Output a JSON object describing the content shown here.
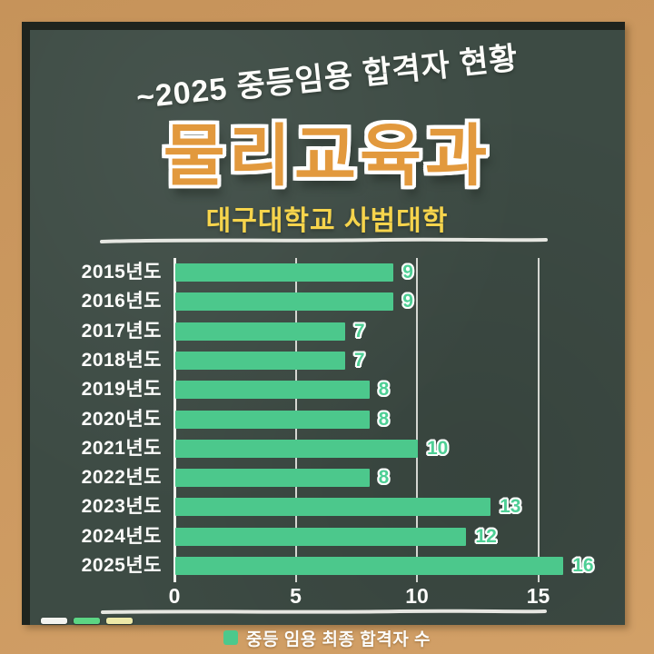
{
  "header": {
    "top_title": "~2025 중등임용 합격자 현황",
    "main_title": "물리교육과",
    "subtitle": "대구대학교 사범대학"
  },
  "chart_data": {
    "type": "bar",
    "orientation": "horizontal",
    "title": "물리교육과 중등임용 합격자 현황 (~2025)",
    "categories": [
      "2015년도",
      "2016년도",
      "2017년도",
      "2018년도",
      "2019년도",
      "2020년도",
      "2021년도",
      "2022년도",
      "2023년도",
      "2024년도",
      "2025년도"
    ],
    "values": [
      9,
      9,
      7,
      7,
      8,
      8,
      10,
      8,
      13,
      12,
      16
    ],
    "xlabel": "",
    "ylabel": "",
    "x_ticks": [
      0,
      5,
      10,
      15
    ],
    "xlim": [
      0,
      17.5
    ],
    "grid": "vertical-lines",
    "legend": {
      "label": "중등 임용 최종 합격자 수",
      "position": "bottom-center",
      "color": "#4cc88c"
    },
    "bar_color": "#4cc88c",
    "value_label_color": "#4ecf95"
  },
  "colors": {
    "frame_tan": "#cd9a61",
    "board_green": "#3d4b44",
    "board_border_dark": "#1f241e",
    "title_orange": "#e2993d",
    "subtitle_yellow": "#f6d44c",
    "chalk_line_white": "#efefea",
    "gridline_white": "#f0f0eb",
    "chalk_piece_white": "#f3f3ef",
    "chalk_piece_green": "#5cd584",
    "chalk_piece_yellow": "#ede9a8"
  },
  "decor": {
    "chalk_pieces": [
      {
        "name": "white-chalk",
        "color": "#f3f3ef"
      },
      {
        "name": "green-chalk",
        "color": "#5cd584"
      },
      {
        "name": "yellow-chalk",
        "color": "#ede9a8"
      }
    ]
  }
}
